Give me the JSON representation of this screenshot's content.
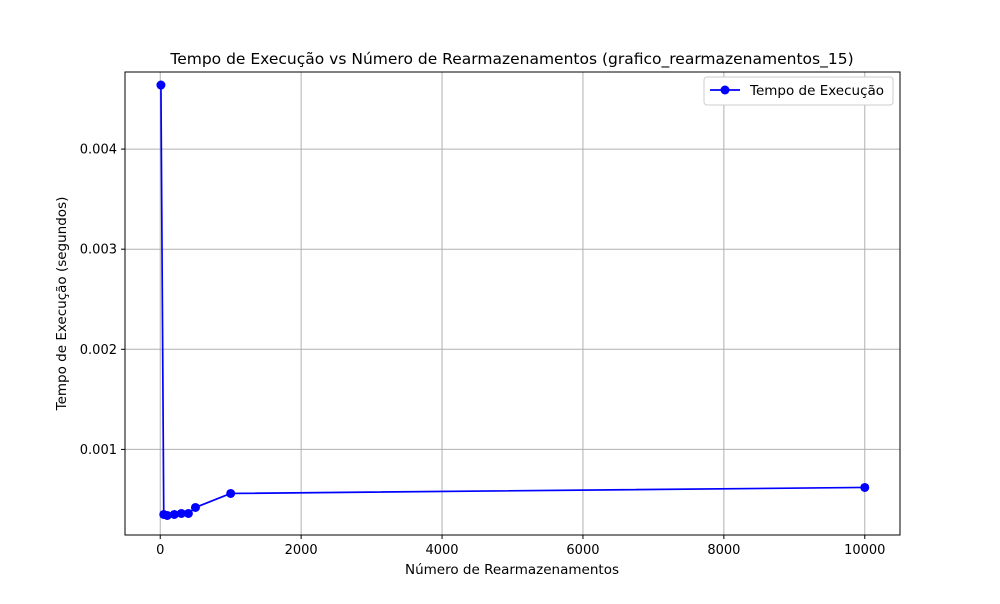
{
  "chart_data": {
    "type": "line",
    "title": "Tempo de Execução vs Número de Rearmazenamentos (grafico_rearmazenamentos_15)",
    "xlabel": "Número de Rearmazenamentos",
    "ylabel": "Tempo de Execução (segundos)",
    "xlim": [
      -500,
      10500
    ],
    "ylim": [
      0.000145,
      0.00477
    ],
    "x_ticks": [
      0,
      2000,
      4000,
      6000,
      8000,
      10000
    ],
    "x_tick_labels": [
      "0",
      "2000",
      "4000",
      "6000",
      "8000",
      "10000"
    ],
    "y_ticks": [
      0.001,
      0.002,
      0.003,
      0.004
    ],
    "y_tick_labels": [
      "0.001",
      "0.002",
      "0.003",
      "0.004"
    ],
    "grid": true,
    "legend_position": "top-right",
    "series": [
      {
        "name": "Tempo de Execução",
        "color": "#0000ff",
        "marker": "circle",
        "x": [
          10,
          50,
          100,
          200,
          300,
          400,
          500,
          1000,
          10000
        ],
        "y": [
          0.00464,
          0.00035,
          0.00034,
          0.00035,
          0.00036,
          0.00036,
          0.00042,
          0.00056,
          0.00062
        ]
      }
    ]
  }
}
